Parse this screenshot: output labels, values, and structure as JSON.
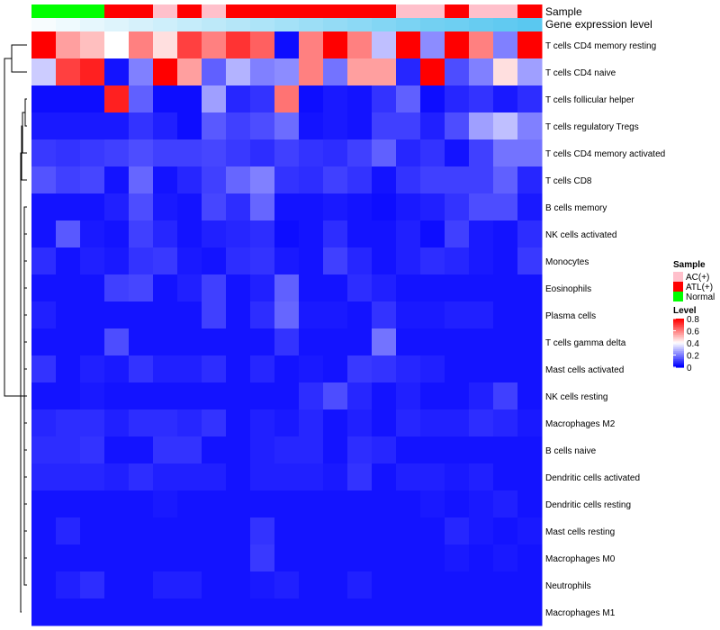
{
  "chart_data": {
    "type": "heatmap",
    "title": "",
    "xlabel": "",
    "ylabel": "",
    "annotation_rows": [
      "Sample",
      "Gene expression level"
    ],
    "sample_groups": [
      "Normal",
      "Normal",
      "Normal",
      "ATL(+)",
      "ATL(+)",
      "AC(+)",
      "ATL(+)",
      "AC(+)",
      "ATL(+)",
      "ATL(+)",
      "ATL(+)",
      "ATL(+)",
      "ATL(+)",
      "ATL(+)",
      "ATL(+)",
      "AC(+)",
      "AC(+)",
      "ATL(+)",
      "AC(+)",
      "AC(+)",
      "ATL(+)"
    ],
    "expression_level": [
      0.05,
      0.1,
      0.15,
      0.2,
      0.25,
      0.3,
      0.35,
      0.4,
      0.45,
      0.5,
      0.55,
      0.6,
      0.65,
      0.7,
      0.75,
      0.8,
      0.85,
      0.88,
      0.92,
      0.96,
      1.0
    ],
    "rows": [
      "T cells CD4 memory resting",
      "T cells CD4 naive",
      "T cells follicular helper",
      "T cells regulatory  Tregs",
      "T cells CD4 memory activated",
      "T cells CD8",
      "B cells memory",
      "NK cells activated",
      "Monocytes",
      "Eosinophils",
      "Plasma cells",
      "T cells gamma delta",
      "Mast cells activated",
      "NK cells resting",
      "Macrophages M2",
      "B cells naive",
      "Dendritic cells activated",
      "Dendritic cells resting",
      "Mast cells resting",
      "Macrophages M0",
      "Neutrophils",
      "Macrophages M1"
    ],
    "values": [
      [
        0.8,
        0.55,
        0.5,
        0.4,
        0.6,
        0.45,
        0.7,
        0.6,
        0.72,
        0.65,
        0.02,
        0.6,
        0.8,
        0.6,
        0.3,
        0.8,
        0.22,
        0.8,
        0.6,
        0.2,
        0.8
      ],
      [
        0.32,
        0.7,
        0.75,
        0.03,
        0.2,
        0.8,
        0.55,
        0.15,
        0.28,
        0.2,
        0.22,
        0.6,
        0.18,
        0.55,
        0.55,
        0.06,
        0.8,
        0.12,
        0.2,
        0.45,
        0.25
      ],
      [
        0.02,
        0.02,
        0.02,
        0.75,
        0.15,
        0.02,
        0.02,
        0.25,
        0.06,
        0.08,
        0.62,
        0.02,
        0.04,
        0.03,
        0.08,
        0.15,
        0.02,
        0.06,
        0.08,
        0.04,
        0.07
      ],
      [
        0.04,
        0.04,
        0.04,
        0.04,
        0.08,
        0.05,
        0.02,
        0.14,
        0.1,
        0.12,
        0.17,
        0.03,
        0.04,
        0.03,
        0.1,
        0.1,
        0.05,
        0.12,
        0.25,
        0.3,
        0.2
      ],
      [
        0.09,
        0.08,
        0.09,
        0.1,
        0.12,
        0.1,
        0.1,
        0.11,
        0.09,
        0.07,
        0.1,
        0.08,
        0.07,
        0.1,
        0.15,
        0.06,
        0.08,
        0.03,
        0.1,
        0.18,
        0.18
      ],
      [
        0.13,
        0.1,
        0.11,
        0.03,
        0.16,
        0.03,
        0.06,
        0.1,
        0.16,
        0.2,
        0.08,
        0.07,
        0.1,
        0.08,
        0.03,
        0.08,
        0.1,
        0.1,
        0.1,
        0.15,
        0.06
      ],
      [
        0.03,
        0.03,
        0.03,
        0.05,
        0.12,
        0.04,
        0.03,
        0.11,
        0.07,
        0.16,
        0.03,
        0.03,
        0.04,
        0.03,
        0.02,
        0.04,
        0.05,
        0.08,
        0.12,
        0.12,
        0.04
      ],
      [
        0.03,
        0.14,
        0.04,
        0.03,
        0.1,
        0.06,
        0.03,
        0.05,
        0.06,
        0.07,
        0.02,
        0.03,
        0.07,
        0.03,
        0.03,
        0.05,
        0.02,
        0.1,
        0.04,
        0.03,
        0.07
      ],
      [
        0.07,
        0.03,
        0.05,
        0.04,
        0.08,
        0.09,
        0.04,
        0.03,
        0.07,
        0.08,
        0.04,
        0.03,
        0.1,
        0.06,
        0.03,
        0.05,
        0.07,
        0.06,
        0.04,
        0.03,
        0.09
      ],
      [
        0.03,
        0.03,
        0.03,
        0.1,
        0.11,
        0.03,
        0.05,
        0.1,
        0.03,
        0.05,
        0.15,
        0.03,
        0.03,
        0.07,
        0.05,
        0.03,
        0.03,
        0.03,
        0.03,
        0.03,
        0.03
      ],
      [
        0.05,
        0.03,
        0.03,
        0.03,
        0.03,
        0.03,
        0.03,
        0.1,
        0.03,
        0.07,
        0.16,
        0.04,
        0.04,
        0.03,
        0.08,
        0.04,
        0.04,
        0.05,
        0.05,
        0.03,
        0.03
      ],
      [
        0.03,
        0.03,
        0.03,
        0.12,
        0.03,
        0.03,
        0.03,
        0.03,
        0.03,
        0.03,
        0.08,
        0.03,
        0.03,
        0.03,
        0.18,
        0.03,
        0.03,
        0.03,
        0.03,
        0.03,
        0.03
      ],
      [
        0.08,
        0.03,
        0.05,
        0.04,
        0.08,
        0.05,
        0.05,
        0.07,
        0.03,
        0.06,
        0.03,
        0.04,
        0.03,
        0.09,
        0.08,
        0.06,
        0.05,
        0.03,
        0.03,
        0.03,
        0.03
      ],
      [
        0.03,
        0.03,
        0.04,
        0.03,
        0.03,
        0.03,
        0.03,
        0.03,
        0.03,
        0.03,
        0.03,
        0.07,
        0.12,
        0.06,
        0.03,
        0.05,
        0.03,
        0.03,
        0.05,
        0.1,
        0.03
      ],
      [
        0.06,
        0.07,
        0.07,
        0.05,
        0.07,
        0.07,
        0.06,
        0.08,
        0.03,
        0.05,
        0.04,
        0.06,
        0.03,
        0.05,
        0.03,
        0.06,
        0.05,
        0.05,
        0.07,
        0.06,
        0.04
      ],
      [
        0.07,
        0.07,
        0.08,
        0.03,
        0.03,
        0.08,
        0.08,
        0.03,
        0.03,
        0.05,
        0.06,
        0.06,
        0.03,
        0.07,
        0.06,
        0.03,
        0.03,
        0.03,
        0.03,
        0.03,
        0.03
      ],
      [
        0.06,
        0.06,
        0.06,
        0.05,
        0.07,
        0.05,
        0.05,
        0.05,
        0.03,
        0.05,
        0.05,
        0.05,
        0.04,
        0.08,
        0.03,
        0.05,
        0.05,
        0.04,
        0.05,
        0.03,
        0.03
      ],
      [
        0.03,
        0.03,
        0.03,
        0.03,
        0.03,
        0.04,
        0.03,
        0.03,
        0.03,
        0.03,
        0.03,
        0.03,
        0.03,
        0.03,
        0.03,
        0.03,
        0.04,
        0.03,
        0.04,
        0.05,
        0.03
      ],
      [
        0.03,
        0.06,
        0.03,
        0.03,
        0.03,
        0.03,
        0.03,
        0.03,
        0.03,
        0.08,
        0.03,
        0.03,
        0.03,
        0.03,
        0.03,
        0.03,
        0.03,
        0.06,
        0.04,
        0.03,
        0.04
      ],
      [
        0.03,
        0.03,
        0.03,
        0.03,
        0.03,
        0.03,
        0.03,
        0.03,
        0.03,
        0.09,
        0.03,
        0.03,
        0.03,
        0.03,
        0.03,
        0.03,
        0.03,
        0.04,
        0.03,
        0.04,
        0.03
      ],
      [
        0.03,
        0.05,
        0.07,
        0.03,
        0.03,
        0.05,
        0.05,
        0.03,
        0.03,
        0.04,
        0.05,
        0.03,
        0.03,
        0.05,
        0.03,
        0.03,
        0.03,
        0.03,
        0.03,
        0.03,
        0.03
      ],
      [
        0.03,
        0.03,
        0.03,
        0.03,
        0.03,
        0.03,
        0.03,
        0.03,
        0.03,
        0.03,
        0.03,
        0.03,
        0.03,
        0.03,
        0.03,
        0.03,
        0.03,
        0.03,
        0.03,
        0.03,
        0.03
      ]
    ],
    "color_scale": {
      "low": "#0000ff",
      "mid": "#ffffff",
      "high": "#ff0000",
      "domain": [
        0,
        0.4,
        0.8
      ]
    },
    "expression_scale": {
      "low": "#ffffff",
      "high": "#5ac8f0"
    },
    "legend": {
      "sample_title": "Sample",
      "sample_entries": [
        {
          "label": "AC(+)",
          "color": "#ffc0cb"
        },
        {
          "label": "ATL(+)",
          "color": "#ff0000"
        },
        {
          "label": "Normal",
          "color": "#00ff00"
        }
      ],
      "level_title": "Level",
      "level_ticks": [
        "0.8",
        "0.6",
        "0.4",
        "0.2",
        "0"
      ],
      "position": "right"
    },
    "row_dendrogram": true
  }
}
